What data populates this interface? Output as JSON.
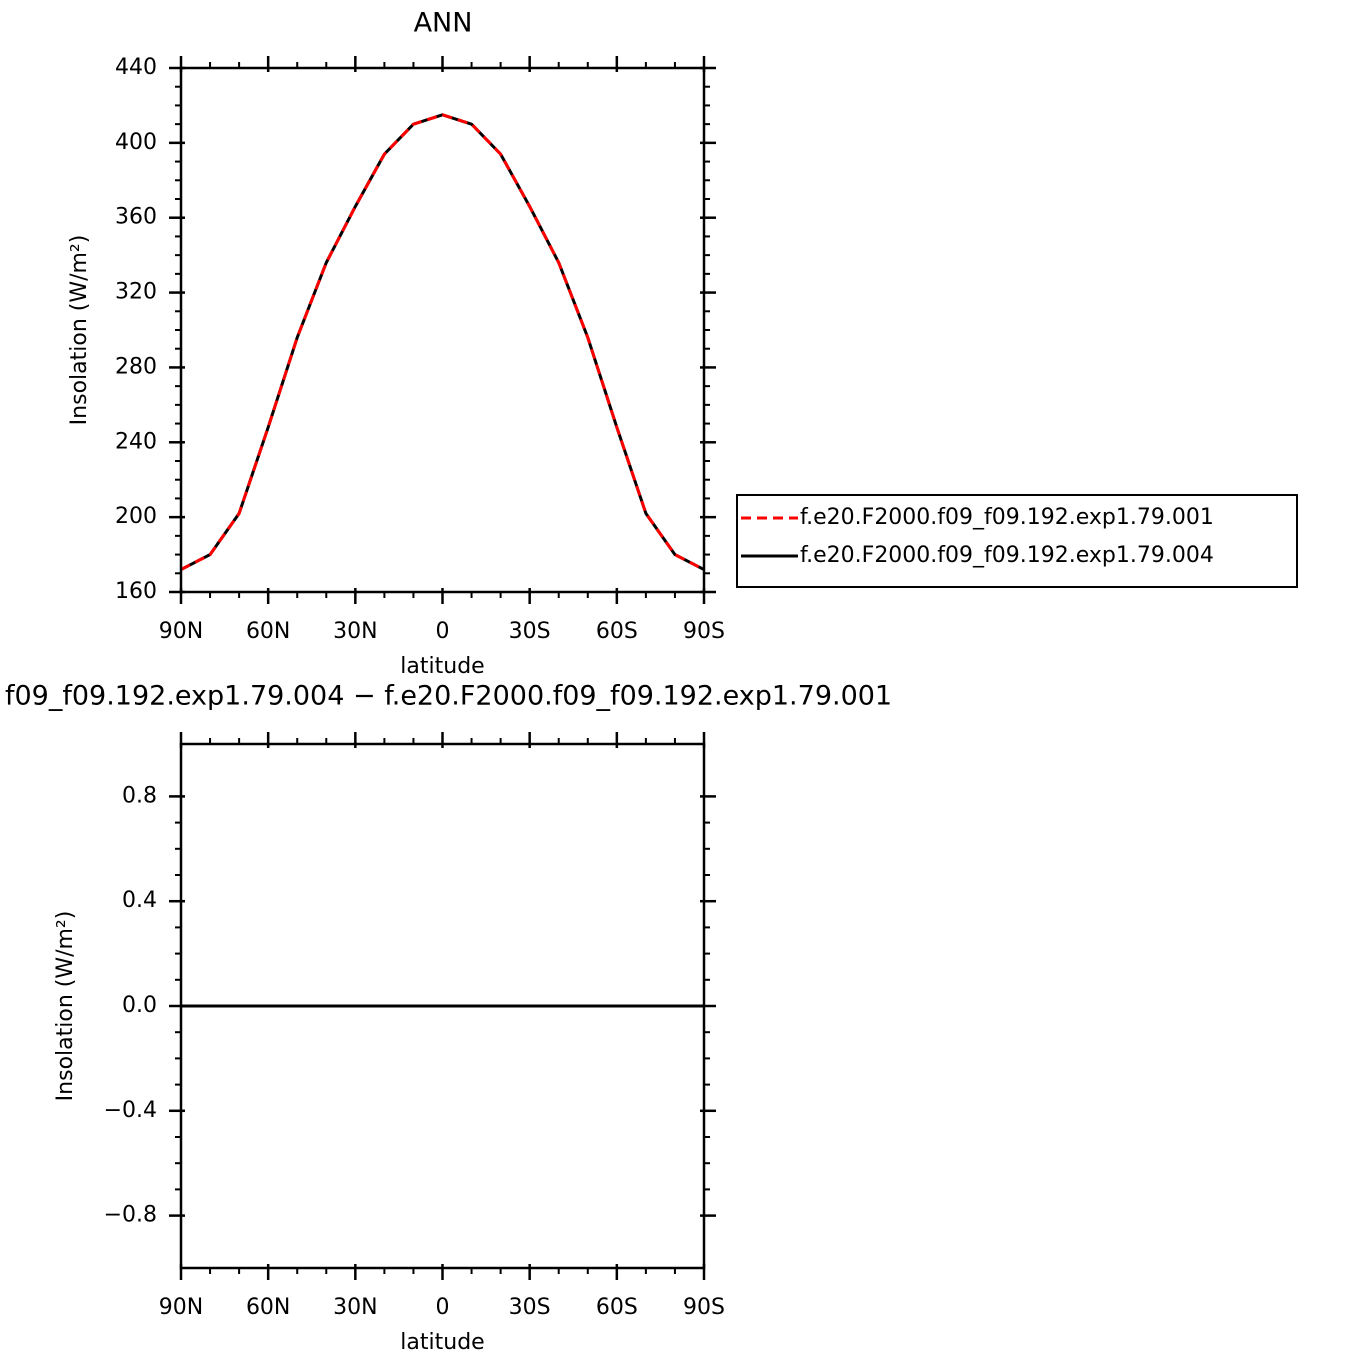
{
  "chart_data": [
    {
      "type": "line",
      "title": "ANN",
      "xlabel": "latitude",
      "ylabel": "Insolation (W/m²)",
      "x": [
        90,
        80,
        70,
        60,
        50,
        40,
        30,
        20,
        10,
        0,
        -10,
        -20,
        -30,
        -40,
        -50,
        -60,
        -70,
        -80,
        -90
      ],
      "xlim": [
        90,
        -90
      ],
      "xticks": [
        {
          "value": 90,
          "label": "90N"
        },
        {
          "value": 60,
          "label": "60N"
        },
        {
          "value": 30,
          "label": "30N"
        },
        0,
        {
          "value": -30,
          "label": "30S"
        },
        {
          "value": -60,
          "label": "60S"
        },
        {
          "value": -90,
          "label": "90S"
        }
      ],
      "ylim": [
        160,
        440
      ],
      "yticks": [
        160,
        200,
        240,
        280,
        320,
        360,
        400,
        440
      ],
      "legend": "right",
      "series": [
        {
          "name": "f.e20.F2000.f09_f09.192.exp1.79.001",
          "color": "#ff0000",
          "dash": "dashed",
          "values": [
            172,
            180,
            202,
            248,
            296,
            336,
            366,
            394,
            410,
            415,
            410,
            394,
            366,
            336,
            296,
            248,
            202,
            180,
            172
          ]
        },
        {
          "name": "f.e20.F2000.f09_f09.192.exp1.79.004",
          "color": "#000000",
          "dash": "solid",
          "values": [
            172,
            180,
            202,
            248,
            296,
            336,
            366,
            394,
            410,
            415,
            410,
            394,
            366,
            336,
            296,
            248,
            202,
            180,
            172
          ]
        }
      ]
    },
    {
      "type": "line",
      "title": "f09_f09.192.exp1.79.004 − f.e20.F2000.f09_f09.192.exp1.79.001",
      "xlabel": "latitude",
      "ylabel": "Insolation (W/m²)",
      "x": [
        90,
        80,
        70,
        60,
        50,
        40,
        30,
        20,
        10,
        0,
        -10,
        -20,
        -30,
        -40,
        -50,
        -60,
        -70,
        -80,
        -90
      ],
      "xlim": [
        90,
        -90
      ],
      "xticks": [
        {
          "value": 90,
          "label": "90N"
        },
        {
          "value": 60,
          "label": "60N"
        },
        {
          "value": 30,
          "label": "30N"
        },
        0,
        {
          "value": -30,
          "label": "30S"
        },
        {
          "value": -60,
          "label": "60S"
        },
        {
          "value": -90,
          "label": "90S"
        }
      ],
      "ylim": [
        -1,
        1
      ],
      "yticks": [
        {
          "value": -0.8,
          "label": "−0.8"
        },
        {
          "value": -0.4,
          "label": "−0.4"
        },
        {
          "value": 0,
          "label": "0.0"
        },
        0.4,
        0.8
      ],
      "series": [
        {
          "color": "#000000",
          "dash": "solid",
          "values": [
            0,
            0,
            0,
            0,
            0,
            0,
            0,
            0,
            0,
            0,
            0,
            0,
            0,
            0,
            0,
            0,
            0,
            0,
            0
          ]
        }
      ]
    }
  ]
}
